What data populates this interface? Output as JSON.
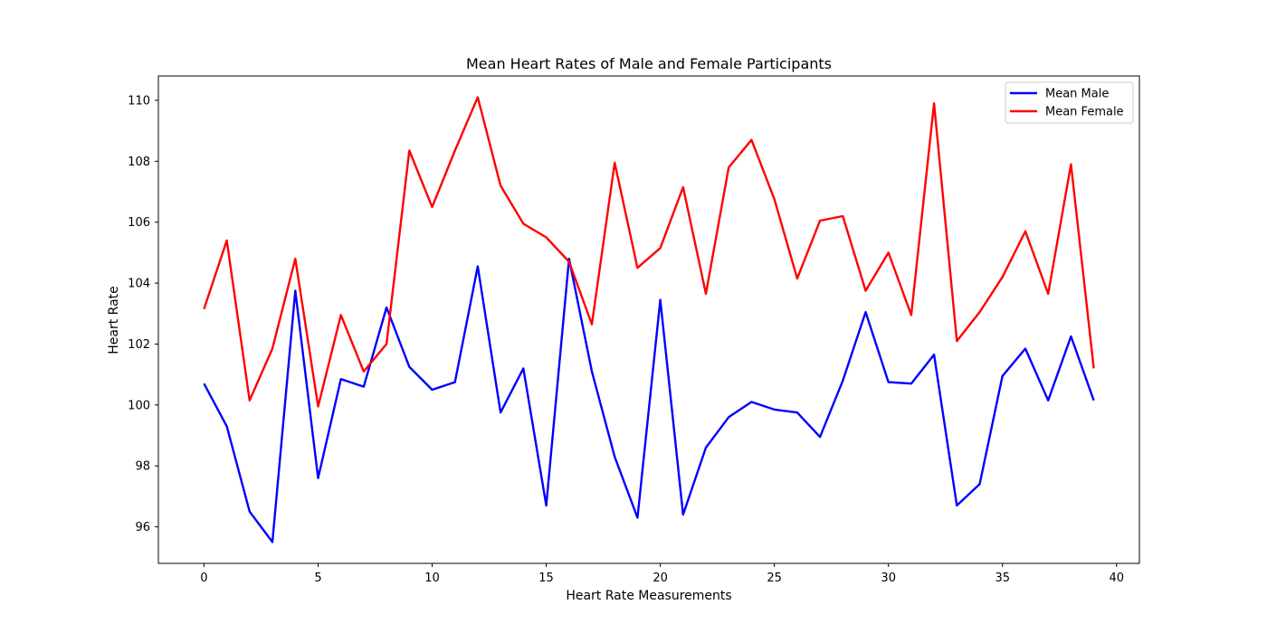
{
  "chart_data": {
    "type": "line",
    "title": "Mean Heart Rates of Male and Female Participants",
    "xlabel": "Heart Rate Measurements",
    "ylabel": "Heart Rate",
    "xlim": [
      -2,
      41
    ],
    "ylim": [
      94.8,
      110.8
    ],
    "xticks": [
      0,
      5,
      10,
      15,
      20,
      25,
      30,
      35,
      40
    ],
    "yticks": [
      96,
      98,
      100,
      102,
      104,
      106,
      108,
      110
    ],
    "x": [
      0,
      1,
      2,
      3,
      4,
      5,
      6,
      7,
      8,
      9,
      10,
      11,
      12,
      13,
      14,
      15,
      16,
      17,
      18,
      19,
      20,
      21,
      22,
      23,
      24,
      25,
      26,
      27,
      28,
      29,
      30,
      31,
      32,
      33,
      34,
      35,
      36,
      37,
      38,
      39
    ],
    "series": [
      {
        "name": "Mean Male",
        "color": "#0000ff",
        "values": [
          100.7,
          99.3,
          96.5,
          95.5,
          103.75,
          97.6,
          100.85,
          100.6,
          103.2,
          101.25,
          100.5,
          100.75,
          104.55,
          99.75,
          101.2,
          96.7,
          104.8,
          101.1,
          98.3,
          96.3,
          103.45,
          96.4,
          98.6,
          99.6,
          100.1,
          99.85,
          99.75,
          98.95,
          100.8,
          103.05,
          100.75,
          100.7,
          101.65,
          96.7,
          97.4,
          100.95,
          101.85,
          100.15,
          102.25,
          100.15
        ]
      },
      {
        "name": "Mean Female",
        "color": "#ff0000",
        "values": [
          103.15,
          105.4,
          100.15,
          101.85,
          104.8,
          99.95,
          102.95,
          101.1,
          102.0,
          108.35,
          106.5,
          108.35,
          110.1,
          107.2,
          105.95,
          105.5,
          104.7,
          102.65,
          107.95,
          104.5,
          105.15,
          107.15,
          103.65,
          107.8,
          108.7,
          106.75,
          104.15,
          106.05,
          106.2,
          103.75,
          105.0,
          102.95,
          109.9,
          102.1,
          103.05,
          104.2,
          105.7,
          103.65,
          107.9,
          101.2
        ]
      }
    ],
    "legend_placement": "top-right",
    "grid": false
  }
}
